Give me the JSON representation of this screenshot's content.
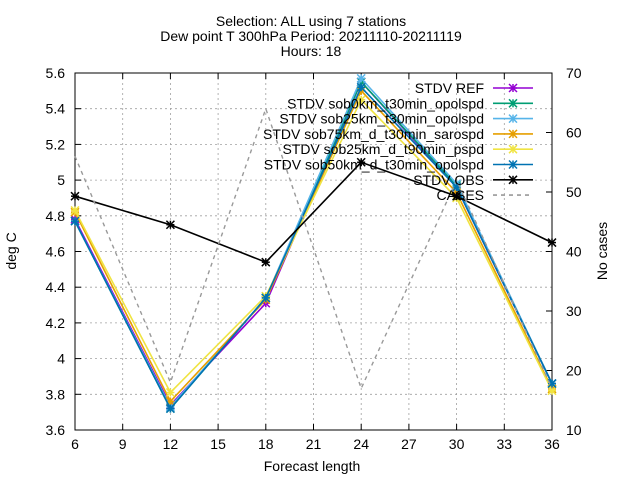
{
  "chart_data": {
    "type": "line",
    "title_lines": [
      "Selection: ALL using      7 stations",
      "Dew point T 300hPa   Period: 20211110-20211119",
      "Hours: 18"
    ],
    "xlabel": "Forecast length",
    "ylabel": "deg C",
    "y2label": "No cases",
    "x": [
      6,
      12,
      18,
      24,
      30,
      36
    ],
    "xlim": [
      6,
      36
    ],
    "ylim": [
      3.6,
      5.6
    ],
    "y2lim": [
      10,
      70
    ],
    "xticks": [
      6,
      9,
      12,
      15,
      18,
      21,
      24,
      27,
      30,
      33,
      36
    ],
    "yticks": [
      3.6,
      3.8,
      4,
      4.2,
      4.4,
      4.6,
      4.8,
      5,
      5.2,
      5.4,
      5.6
    ],
    "yticklabels": [
      "3.6",
      "3.8",
      "4",
      "4.2",
      "4.4",
      "4.6",
      "4.8",
      "5",
      "5.2",
      "5.4",
      "5.6"
    ],
    "y2ticks": [
      10,
      20,
      30,
      40,
      50,
      60,
      70
    ],
    "grid": true,
    "legend_position": "top-right",
    "series": [
      {
        "name": "STDV REF",
        "color": "#9400d3",
        "axis": "y1",
        "dash": false,
        "values": [
          4.78,
          3.74,
          4.31,
          5.55,
          4.96,
          3.86
        ]
      },
      {
        "name": "STDV sob0km_t30min_opolspd",
        "color": "#009e73",
        "axis": "y1",
        "dash": false,
        "values": [
          4.77,
          3.72,
          4.34,
          5.55,
          4.97,
          3.86
        ]
      },
      {
        "name": "STDV sob25km_t30min_opolspd",
        "color": "#56b4e9",
        "axis": "y1",
        "dash": false,
        "values": [
          4.77,
          3.73,
          4.34,
          5.57,
          4.98,
          3.86
        ]
      },
      {
        "name": "STDV sob75km_d_t30min_sarospd",
        "color": "#e69f00",
        "axis": "y1",
        "dash": false,
        "values": [
          4.82,
          3.76,
          4.33,
          5.5,
          4.93,
          3.83
        ]
      },
      {
        "name": "STDV sob25km_d_t90min_pspd",
        "color": "#f0e442",
        "axis": "y1",
        "dash": false,
        "values": [
          4.83,
          3.81,
          4.35,
          5.45,
          4.9,
          3.82
        ]
      },
      {
        "name": "STDV sob50km_d_t30min_opolspd",
        "color": "#0072b2",
        "axis": "y1",
        "dash": false,
        "values": [
          4.77,
          3.72,
          4.34,
          5.52,
          4.96,
          3.86
        ]
      },
      {
        "name": "STDV OBS",
        "color": "#000000",
        "axis": "y1",
        "dash": false,
        "values": [
          4.91,
          4.75,
          4.54,
          5.1,
          4.91,
          4.65
        ]
      },
      {
        "name": "CASES",
        "color": "#999999",
        "axis": "y2",
        "dash": true,
        "values": [
          56,
          18,
          64,
          17,
          52,
          17
        ]
      }
    ],
    "legend_labels": [
      "STDV REF",
      "STDV sob0km_t30min_opolspd",
      "STDV sob25km_t30min_opolspd",
      "STDV sob75km_d_t30min_sarospd",
      "STDV sob25km_d_t90min_pspd",
      "STDV sob50km_d_t30min_opolspd",
      "STDV OBS",
      "CASES"
    ]
  }
}
